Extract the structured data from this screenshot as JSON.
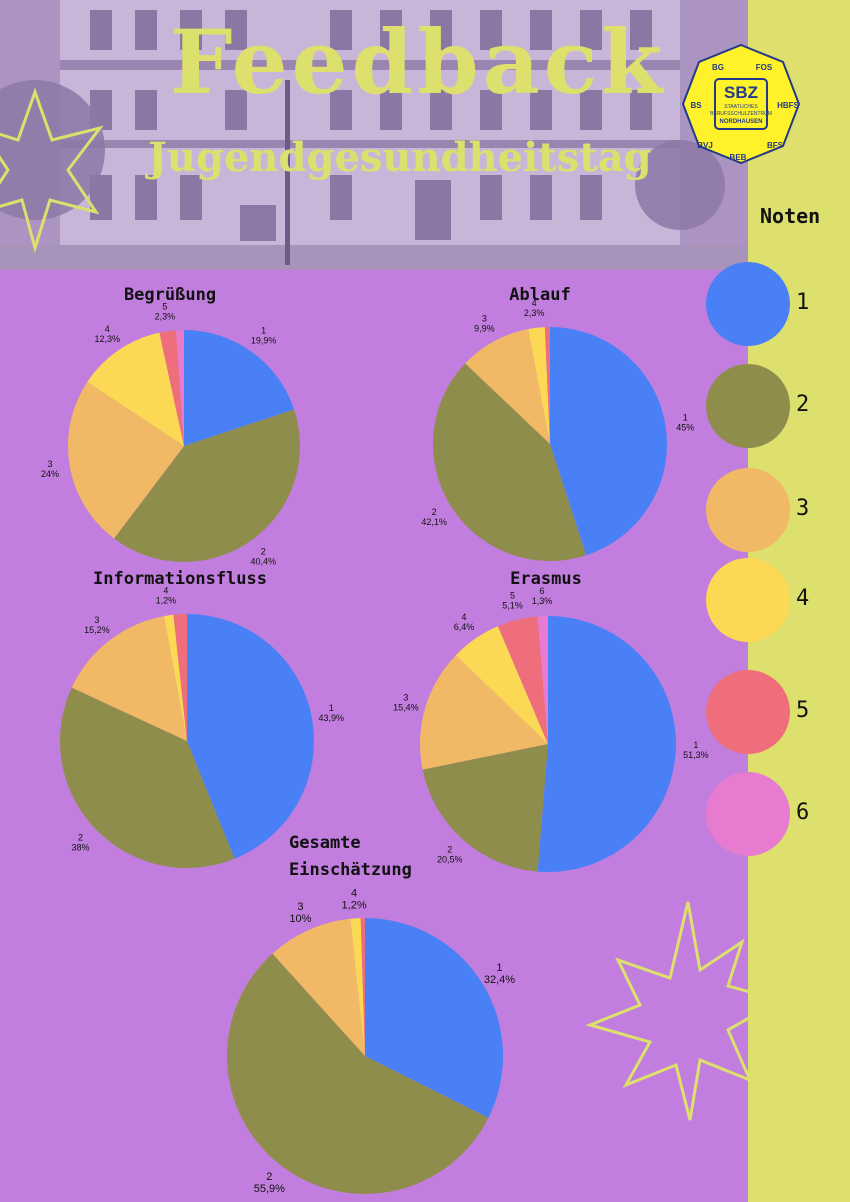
{
  "header": {
    "title": "Feedback",
    "subtitle": "Jugendgesundheitstag"
  },
  "logo": {
    "center": "SBZ",
    "line1": "STAATLICHES",
    "line2": "BERUFSSCHULZENTRUM",
    "line3": "NORDHAUSEN",
    "segments": [
      "BG",
      "FOS",
      "HBFS",
      "BFS",
      "BEB",
      "BVJ",
      "BS"
    ]
  },
  "legend": {
    "title": "Noten",
    "items": [
      {
        "label": "1",
        "color": "#4a80f5"
      },
      {
        "label": "2",
        "color": "#8f8d4b"
      },
      {
        "label": "3",
        "color": "#f1b866"
      },
      {
        "label": "4",
        "color": "#fbd955"
      },
      {
        "label": "5",
        "color": "#ee6f7b"
      },
      {
        "label": "6",
        "color": "#e77bd0"
      }
    ]
  },
  "chart_data": [
    {
      "type": "pie",
      "title": "Begrüßung",
      "slices": [
        {
          "label": "1",
          "value": 19.9,
          "value_text": "19,9%"
        },
        {
          "label": "2",
          "value": 40.4,
          "value_text": "40,4%"
        },
        {
          "label": "3",
          "value": 24.0,
          "value_text": "24%"
        },
        {
          "label": "4",
          "value": 12.3,
          "value_text": "12,3%"
        },
        {
          "label": "5",
          "value": 2.3,
          "value_text": "2,3%"
        },
        {
          "label": "6",
          "value": 1.1,
          "value_text": ""
        }
      ]
    },
    {
      "type": "pie",
      "title": "Ablauf",
      "slices": [
        {
          "label": "1",
          "value": 45.0,
          "value_text": "45%"
        },
        {
          "label": "2",
          "value": 42.1,
          "value_text": "42,1%"
        },
        {
          "label": "3",
          "value": 9.9,
          "value_text": "9,9%"
        },
        {
          "label": "4",
          "value": 2.3,
          "value_text": "2,3%"
        },
        {
          "label": "5",
          "value": 0.7,
          "value_text": ""
        }
      ]
    },
    {
      "type": "pie",
      "title": "Informationsfluss",
      "slices": [
        {
          "label": "1",
          "value": 43.9,
          "value_text": "43,9%"
        },
        {
          "label": "2",
          "value": 38.0,
          "value_text": "38%"
        },
        {
          "label": "3",
          "value": 15.2,
          "value_text": "15,2%"
        },
        {
          "label": "4",
          "value": 1.2,
          "value_text": "1,2%"
        },
        {
          "label": "5",
          "value": 1.7,
          "value_text": ""
        }
      ]
    },
    {
      "type": "pie",
      "title": "Erasmus",
      "slices": [
        {
          "label": "1",
          "value": 51.3,
          "value_text": "51,3%"
        },
        {
          "label": "2",
          "value": 20.5,
          "value_text": "20,5%"
        },
        {
          "label": "3",
          "value": 15.4,
          "value_text": "15,4%"
        },
        {
          "label": "4",
          "value": 6.4,
          "value_text": "6,4%"
        },
        {
          "label": "5",
          "value": 5.1,
          "value_text": "5,1%"
        },
        {
          "label": "6",
          "value": 1.3,
          "value_text": "1,3%"
        }
      ]
    },
    {
      "type": "pie",
      "title": "Gesamte Einschätzung",
      "slices": [
        {
          "label": "1",
          "value": 32.4,
          "value_text": "32,4%"
        },
        {
          "label": "2",
          "value": 55.9,
          "value_text": "55,9%"
        },
        {
          "label": "3",
          "value": 10.0,
          "value_text": "10%"
        },
        {
          "label": "4",
          "value": 1.2,
          "value_text": "1,2%"
        },
        {
          "label": "5",
          "value": 0.5,
          "value_text": ""
        }
      ]
    }
  ]
}
